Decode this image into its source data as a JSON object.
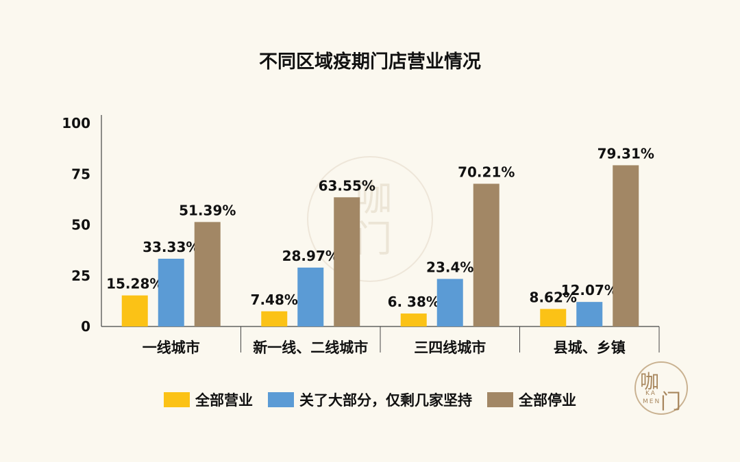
{
  "watermark_text": "咖门",
  "logo": {
    "han_top": "咖",
    "han_bottom": "门",
    "latin_top": "KA",
    "latin_bottom": "MEN"
  },
  "colors": {
    "background": "#fbf8ef",
    "all_open": "#fbc216",
    "mostly_closed": "#5b9bd5",
    "all_closed": "#a28765"
  },
  "chart_data": {
    "type": "bar",
    "title": "不同区域疫期门店营业情况",
    "xlabel": "",
    "ylabel": "",
    "ylim": [
      0,
      100
    ],
    "yticks": [
      "0",
      "25",
      "50",
      "75",
      "100"
    ],
    "categories": [
      "一线城市",
      "新一线、二线城市",
      "三四线城市",
      "县城、乡镇"
    ],
    "series": [
      {
        "name": "全部营业",
        "values": [
          15.28,
          7.48,
          6.38,
          8.62
        ],
        "labels": [
          "15.28%",
          "7.48%",
          "6. 38%",
          "8.62%"
        ],
        "color": "#fbc216"
      },
      {
        "name": "关了大部分，仅剩几家坚持",
        "values": [
          33.33,
          28.97,
          23.4,
          12.07
        ],
        "labels": [
          "33.33%",
          "28.97%",
          "23.4%",
          "12.07%"
        ],
        "color": "#5b9bd5"
      },
      {
        "name": "全部停业",
        "values": [
          51.39,
          63.55,
          70.21,
          79.31
        ],
        "labels": [
          "51.39%",
          "63.55%",
          "70.21%",
          "79.31%"
        ],
        "color": "#a28765"
      }
    ],
    "grid": false,
    "legend": "bottom"
  }
}
